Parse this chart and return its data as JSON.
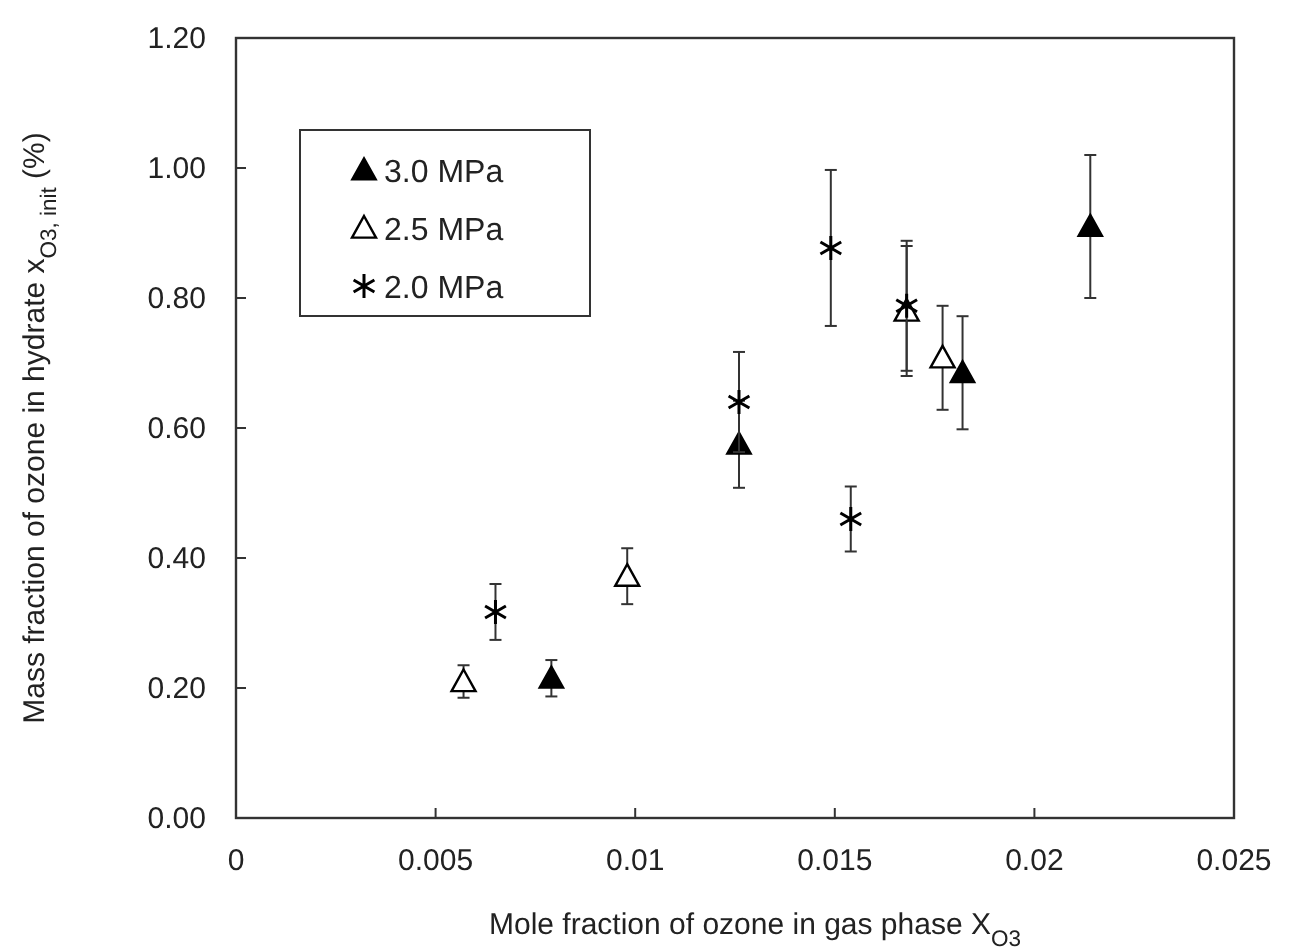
{
  "chart_data": {
    "type": "scatter",
    "xlabel": "Mole fraction of ozone in gas phase X$_{O3}$",
    "ylabel": "Mass fraction of ozone in hydrate x$_{O3, init}$ (%)",
    "xlim": [
      0,
      0.025
    ],
    "xticks": [
      0,
      0.005,
      0.01,
      0.015,
      0.02,
      0.025
    ],
    "ylim": [
      0,
      1.2
    ],
    "yticks": [
      {
        "value": 0,
        "label": "0.00"
      },
      {
        "value": 0.2,
        "label": "0.20"
      },
      {
        "value": 0.4,
        "label": "0.40"
      },
      {
        "value": 0.6,
        "label": "0.60"
      },
      {
        "value": 0.8,
        "label": "0.80"
      },
      {
        "value": 1,
        "label": "1.00"
      },
      {
        "value": 1.2,
        "label": "1.20"
      }
    ],
    "grid": false,
    "legend": "top left",
    "series": [
      {
        "name": "3.0 MPa",
        "color": "#000000",
        "marker": "triangle",
        "x": [
          0.0079,
          0.0126,
          0.0182,
          0.0214
        ],
        "values": [
          0.215,
          0.575,
          0.685,
          0.91
        ],
        "errors": [
          0.028,
          0.067,
          0.087,
          0.11
        ]
      },
      {
        "name": "2.5 MPa",
        "color": "#000000",
        "marker": "triangle-open",
        "x": [
          0.0057,
          0.0098,
          0.0168,
          0.0177
        ],
        "values": [
          0.21,
          0.372,
          0.78,
          0.708
        ],
        "errors": [
          0.025,
          0.043,
          0.1,
          0.08
        ]
      },
      {
        "name": "2.0 MPa",
        "color": "#000000",
        "marker": "cross",
        "x": [
          0.0065,
          0.0126,
          0.0149,
          0.0154,
          0.0168
        ],
        "values": [
          0.317,
          0.64,
          0.877,
          0.46,
          0.788
        ],
        "errors": [
          0.043,
          0.077,
          0.12,
          0.05,
          0.1
        ]
      }
    ]
  }
}
